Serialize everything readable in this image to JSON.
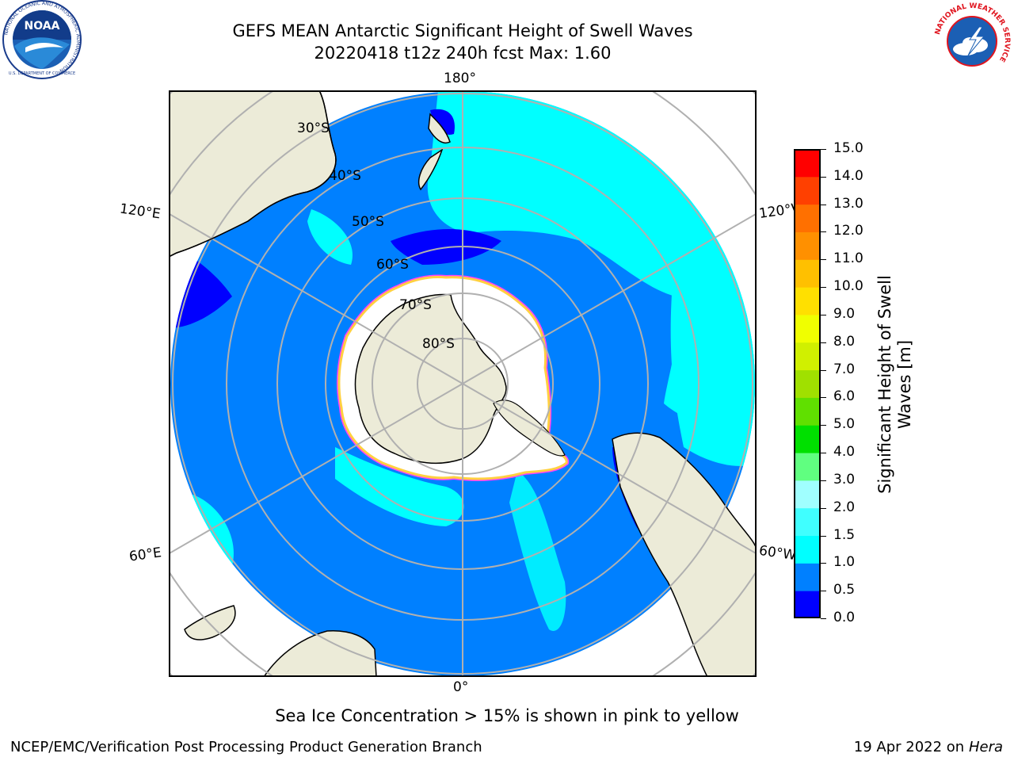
{
  "title": {
    "line1": "GEFS MEAN Antarctic Significant Height of Swell Waves",
    "line2": "20220418 t12z 240h fcst   Max: 1.60"
  },
  "map": {
    "projection": "south polar stereographic",
    "longitude_labels": {
      "top": "180°",
      "bottom": "0°",
      "upper_left": "120°E",
      "upper_right": "120°W",
      "lower_left": "60°E",
      "lower_right": "60°W"
    },
    "latitude_labels": [
      "30°S",
      "40°S",
      "50°S",
      "60°S",
      "70°S",
      "80°S"
    ]
  },
  "colorbar": {
    "label_line1": "Significant Height of Swell",
    "label_line2": "Waves [m]",
    "ticks": [
      "0.0",
      "0.5",
      "1.0",
      "1.5",
      "2.0",
      "3.0",
      "4.0",
      "5.0",
      "6.0",
      "7.0",
      "8.0",
      "9.0",
      "10.0",
      "11.0",
      "12.0",
      "13.0",
      "14.0",
      "15.0"
    ],
    "colors": [
      "#0000ff",
      "#0080ff",
      "#00ffff",
      "#40ffff",
      "#a0ffff",
      "#60ff80",
      "#00e000",
      "#60e000",
      "#a0e000",
      "#d0f000",
      "#f0ff00",
      "#ffe000",
      "#ffc000",
      "#ff9000",
      "#ff7000",
      "#ff4000",
      "#ff0000"
    ]
  },
  "note": "Sea Ice Concentration > 15% is shown in pink to yellow",
  "footer": {
    "left": "NCEP/EMC/Verification Post Processing Product Generation Branch",
    "right_prefix": "19 Apr 2022 on ",
    "right_italic": "Hera"
  },
  "logos": {
    "left": {
      "name": "NOAA",
      "ring_text": "NATIONAL OCEANIC AND ATMOSPHERIC ADMINISTRATION",
      "bottom_text": "U.S. DEPARTMENT OF COMMERCE",
      "label": "NOAA"
    },
    "right": {
      "name": "National Weather Service",
      "ring_text": "NATIONAL WEATHER SERVICE"
    }
  }
}
